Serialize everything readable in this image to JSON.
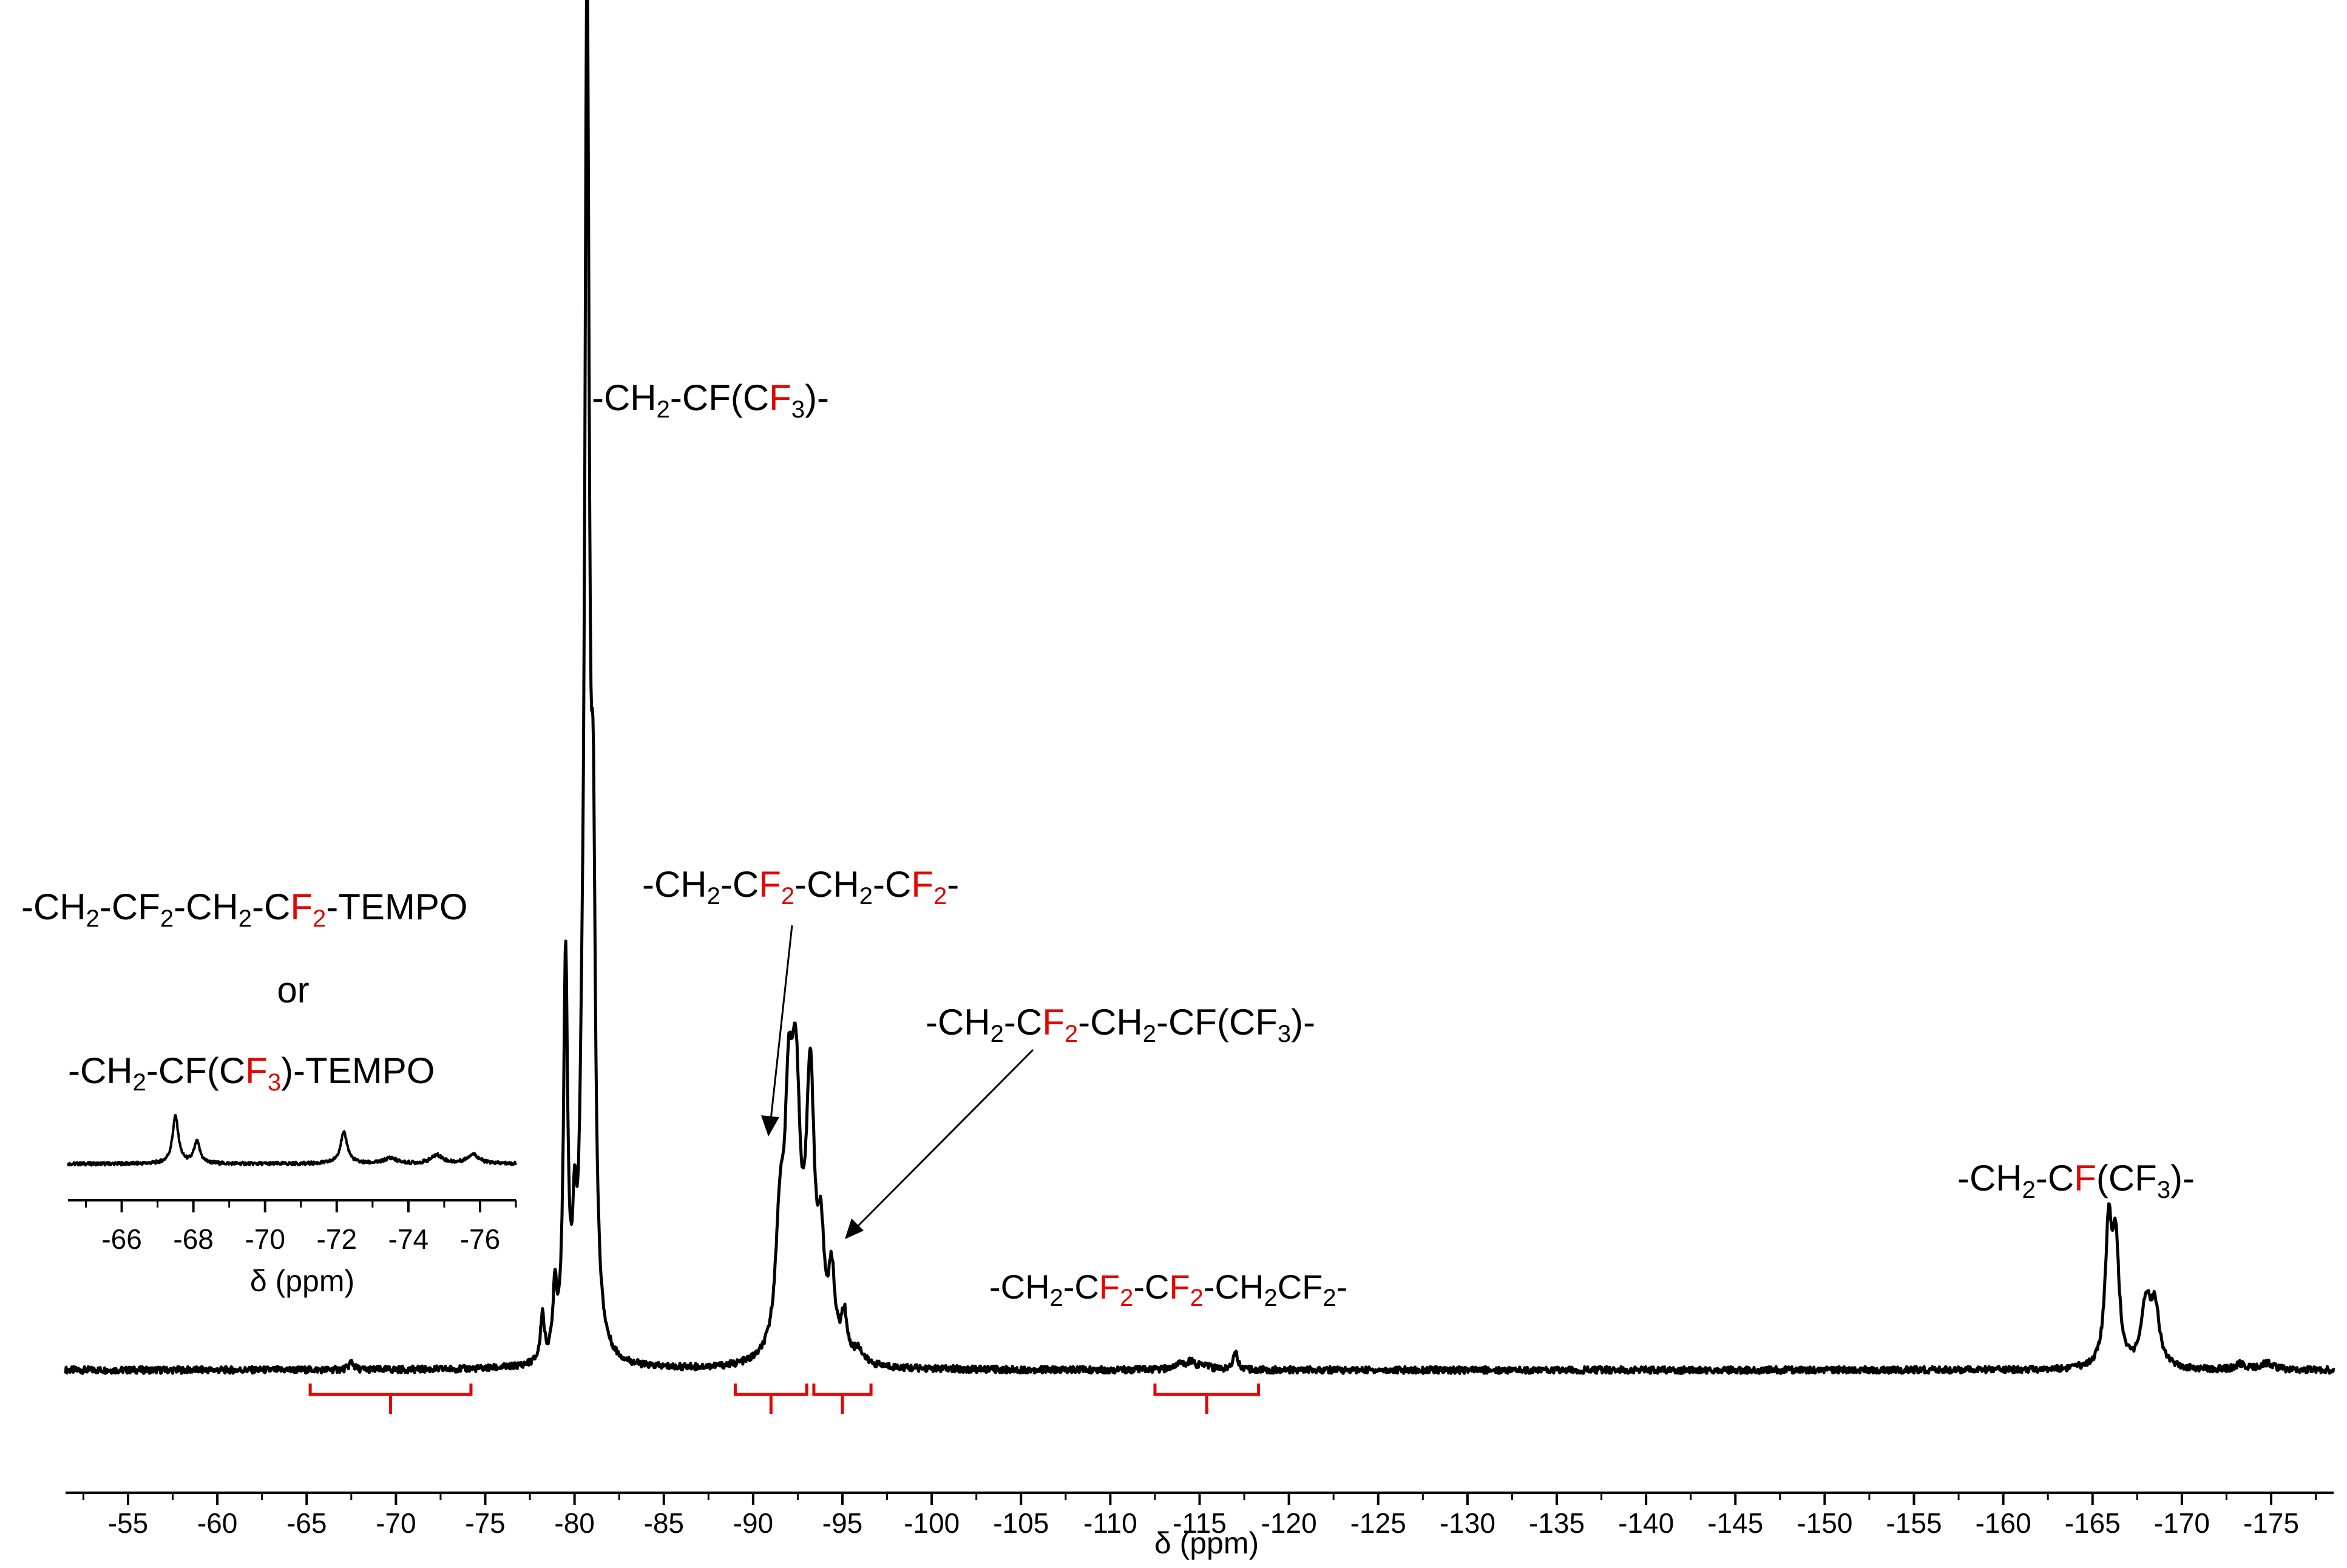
{
  "chart_data": [
    {
      "type": "line",
      "xlabel": "δ (ppm)",
      "xlim": [
        -51.5,
        -178.5
      ],
      "ticks": [
        -55,
        -60,
        -65,
        -70,
        -75,
        -80,
        -85,
        -90,
        -95,
        -100,
        -105,
        -110,
        -115,
        -120,
        -125,
        -130,
        -135,
        -140,
        -145,
        -150,
        -155,
        -160,
        -165,
        -170,
        -175
      ],
      "tick_labels": [
        "-55",
        "-60",
        "-65",
        "-70",
        "-75",
        "-80",
        "-85",
        "-90",
        "-95",
        "-100",
        "-105",
        "-110",
        "-115",
        "-120",
        "-125",
        "-130",
        "-135",
        "-140",
        "-145",
        "-150",
        "-155",
        "-160",
        "-165",
        "-170",
        "-175"
      ],
      "peaks": [
        {
          "x": -67.5,
          "height": 0.6,
          "width": 0.15
        },
        {
          "x": -78.2,
          "height": 3.5,
          "width": 0.12
        },
        {
          "x": -78.9,
          "height": 5.0,
          "width": 0.12
        },
        {
          "x": -79.5,
          "height": 29.0,
          "width": 0.14
        },
        {
          "x": -80.0,
          "height": 7.0,
          "width": 0.12
        },
        {
          "x": -80.4,
          "height": 6.0,
          "width": 0.12
        },
        {
          "x": -80.7,
          "height": 100.0,
          "width": 0.16
        },
        {
          "x": -81.05,
          "height": 29.5,
          "width": 0.14
        },
        {
          "x": -91.5,
          "height": 8.5,
          "width": 0.28
        },
        {
          "x": -92.0,
          "height": 16.0,
          "width": 0.28
        },
        {
          "x": -92.4,
          "height": 17.0,
          "width": 0.28
        },
        {
          "x": -93.2,
          "height": 20.0,
          "width": 0.28
        },
        {
          "x": -93.8,
          "height": 7.0,
          "width": 0.22
        },
        {
          "x": -94.4,
          "height": 5.8,
          "width": 0.22
        },
        {
          "x": -95.1,
          "height": 3.2,
          "width": 0.2
        },
        {
          "x": -95.9,
          "height": 1.0,
          "width": 0.3
        },
        {
          "x": -113.8,
          "height": 0.4,
          "width": 0.3
        },
        {
          "x": -114.5,
          "height": 0.6,
          "width": 0.3
        },
        {
          "x": -115.3,
          "height": 0.4,
          "width": 0.3
        },
        {
          "x": -117.0,
          "height": 1.4,
          "width": 0.15
        },
        {
          "x": -165.9,
          "height": 10.2,
          "width": 0.22
        },
        {
          "x": -166.3,
          "height": 8.6,
          "width": 0.22
        },
        {
          "x": -168.0,
          "height": 4.6,
          "width": 0.3
        },
        {
          "x": -168.5,
          "height": 4.2,
          "width": 0.3
        },
        {
          "x": -173.3,
          "height": 0.4,
          "width": 0.3
        },
        {
          "x": -174.8,
          "height": 0.5,
          "width": 0.4
        }
      ],
      "integration_brackets": [
        {
          "from": -65.2,
          "to": -74.2
        },
        {
          "from": -89.0,
          "to": -93.0
        },
        {
          "from": -93.4,
          "to": -96.6
        },
        {
          "from": -112.5,
          "to": -118.3
        }
      ],
      "annotations": [
        {
          "pre": "-CH",
          "s1": "2",
          "mid": "-CF(C",
          "red": "F",
          "s2": "3",
          "post": ")-"
        },
        {
          "pre": "-CH",
          "s1": "2",
          "mid": "-C",
          "red": "F",
          "s2": "2",
          "mid2": "-CH",
          "s3": "2",
          "mid3": "-C",
          "red2": "F",
          "s4": "2",
          "post": "-"
        },
        {
          "pre": "-CH",
          "s1": "2",
          "mid": "-C",
          "red": "F",
          "s2": "2",
          "mid2": "-CH",
          "s3": "2",
          "post": "-CF(CF",
          "s4": "3",
          "post2": ")-"
        },
        {
          "pre": "-CH",
          "s1": "2",
          "mid": "-C",
          "red": "F",
          "s2": "2",
          "mid2": "-C",
          "red2": "F",
          "s3": "2",
          "post": "-CH",
          "s4": "2",
          "post2": "CF",
          "s5": "2",
          "post3": "-"
        },
        {
          "pre": "-CH",
          "s1": "2",
          "mid": "-C",
          "red": "F",
          "post": "(CF",
          "s2": "3",
          "post2": ")-"
        }
      ]
    },
    {
      "type": "line",
      "xlabel": "δ (ppm)",
      "xlim": [
        -64.5,
        -77.0
      ],
      "ticks": [
        -66,
        -68,
        -70,
        -72,
        -74,
        -76
      ],
      "tick_labels": [
        "-66",
        "-68",
        "-70",
        "-72",
        "-74",
        "-76"
      ],
      "peaks": [
        {
          "x": -67.5,
          "height": 1.0,
          "width": 0.1
        },
        {
          "x": -68.1,
          "height": 0.45,
          "width": 0.1
        },
        {
          "x": -72.2,
          "height": 0.65,
          "width": 0.12
        },
        {
          "x": -73.5,
          "height": 0.12,
          "width": 0.2
        },
        {
          "x": -74.8,
          "height": 0.18,
          "width": 0.2
        },
        {
          "x": -75.8,
          "height": 0.2,
          "width": 0.2
        }
      ],
      "labels": {
        "line1": {
          "pre": "-CH",
          "s1": "2",
          "mid": "-CF",
          "s2": "2",
          "mid2": "-CH",
          "s3": "2",
          "mid3": "-C",
          "red": "F",
          "s4": "2",
          "post": "-TEMPO"
        },
        "or": "or",
        "line2": {
          "pre": "-CH",
          "s1": "2",
          "mid": "-CF(C",
          "red": "F",
          "s2": "3",
          "post": ")-TEMPO"
        }
      }
    }
  ]
}
